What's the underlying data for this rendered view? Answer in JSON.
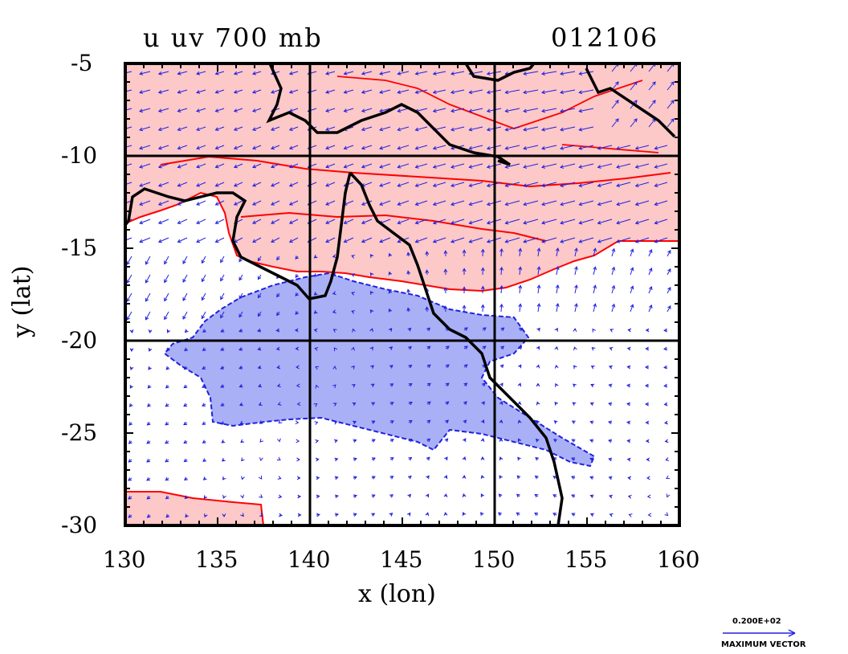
{
  "title": {
    "left": "u  uv  700  mb",
    "right": "012106"
  },
  "axes": {
    "xlabel": "x (lon)",
    "ylabel": "y (lat)",
    "xlim": [
      130,
      160
    ],
    "ylim": [
      -30,
      -5
    ],
    "xticks": [
      "130",
      "135",
      "140",
      "145",
      "150",
      "155",
      "160"
    ],
    "yticks": [
      "-5",
      "-10",
      "-15",
      "-20",
      "-25",
      "-30"
    ]
  },
  "legend": {
    "vector_value": "0.200E+02",
    "vector_label": "MAXIMUM VECTOR"
  },
  "colors": {
    "positive_fill": "#fcc8c8",
    "positive_contour": "#ff0000",
    "negative_fill": "#aab0f5",
    "negative_contour": "#2020e0",
    "vectors": "#2020e0",
    "coastline": "#000000"
  },
  "chart_data": {
    "type": "map",
    "field": "u wind with uv vectors at 700 mb",
    "date": "012106",
    "gridlines": {
      "lon": [
        140,
        150
      ],
      "lat": [
        -10,
        -20
      ]
    },
    "regions": [
      {
        "sign": "positive",
        "lat_range": [
          -17.5,
          -5
        ],
        "lon_range": [
          130,
          160
        ]
      },
      {
        "sign": "positive",
        "lat_range": [
          -30,
          -28
        ],
        "lon_range": [
          130,
          137
        ]
      },
      {
        "sign": "negative",
        "lat_range": [
          -26,
          -17
        ],
        "lon_range": [
          132,
          156
        ]
      }
    ]
  }
}
